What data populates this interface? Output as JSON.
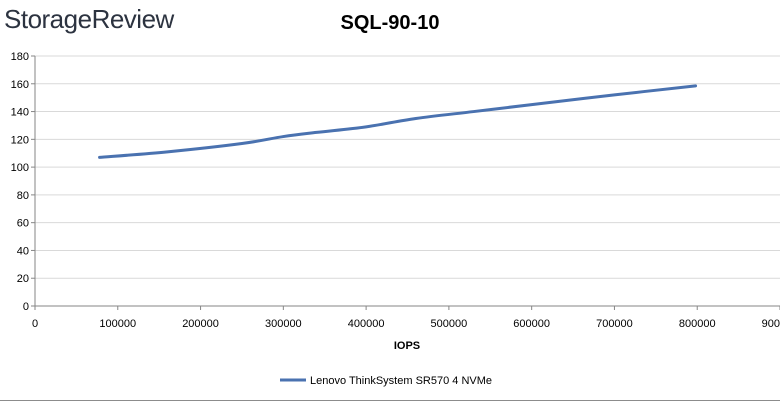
{
  "brand": {
    "logo_text": "StorageReview"
  },
  "colors": {
    "series": "#4a72b0",
    "grid": "#d9d9d9",
    "axis": "#868686",
    "logo": "#2c3340"
  },
  "chart_data": {
    "type": "line",
    "title": "SQL-90-10",
    "xlabel": "IOPS",
    "ylabel": "",
    "xlim": [
      0,
      900000
    ],
    "ylim": [
      0,
      180
    ],
    "x_ticks": [
      0,
      100000,
      200000,
      300000,
      400000,
      500000,
      600000,
      700000,
      800000,
      900000
    ],
    "x_tick_labels": [
      "0",
      "100000",
      "200000",
      "300000",
      "400000",
      "500000",
      "600000",
      "700000",
      "800000",
      "900000"
    ],
    "y_ticks": [
      0,
      20,
      40,
      60,
      80,
      100,
      120,
      140,
      160,
      180
    ],
    "y_tick_labels": [
      "0",
      "20",
      "40",
      "60",
      "80",
      "100",
      "120",
      "140",
      "160",
      "180"
    ],
    "grid": true,
    "legend_position": "bottom",
    "series": [
      {
        "name": "Lenovo ThinkSystem SR570 4 NVMe",
        "x": [
          78000,
          160000,
          250000,
          300000,
          340000,
          400000,
          460000,
          530000,
          600000,
          700000,
          798000
        ],
        "y": [
          107,
          111,
          117,
          122,
          125,
          129,
          135,
          140,
          145,
          152,
          158.5
        ]
      }
    ]
  }
}
